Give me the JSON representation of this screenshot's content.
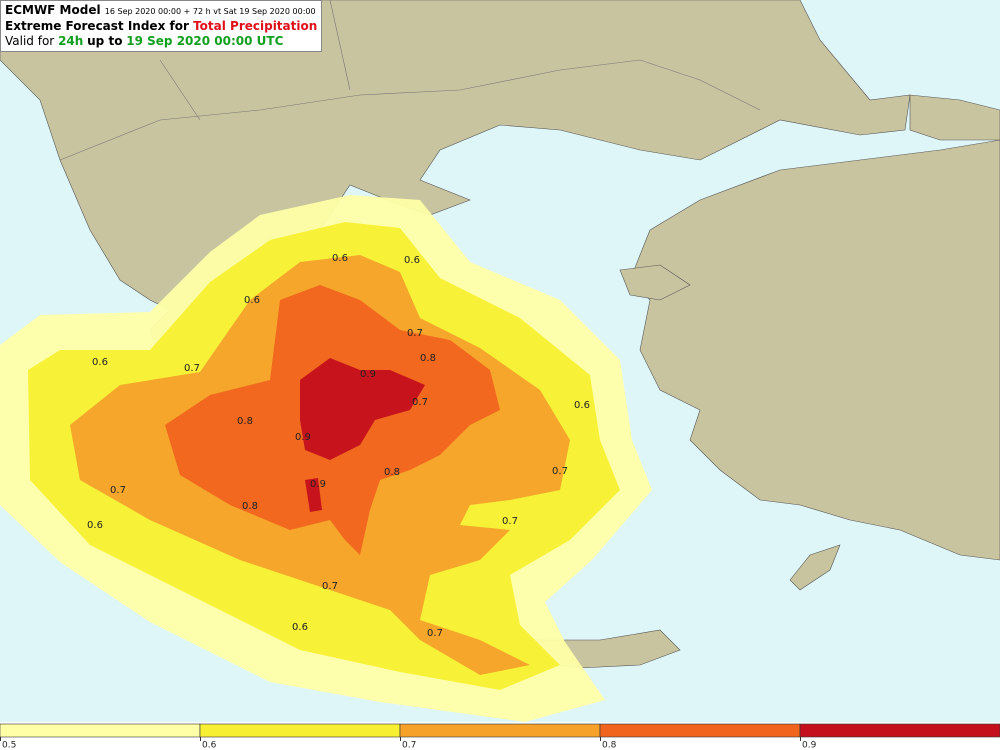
{
  "header": {
    "line1": [
      "ECMWF Model",
      "16 Sep 2020 00:00 + 72 h vt Sat 19 Sep 2020 00:00"
    ],
    "line2": [
      "Extreme Forecast Index for",
      "Total Precipitation"
    ],
    "line3": [
      "Valid for",
      "24h",
      "up to",
      "19 Sep 2020 00:00 UTC"
    ]
  },
  "contour_labels": [
    "0.6",
    "0.6",
    "0.6",
    "0.6",
    "0.6",
    "0.6",
    "0.6",
    "0.7",
    "0.7",
    "0.7",
    "0.7",
    "0.7",
    "0.7",
    "0.7",
    "0.7",
    "0.8",
    "0.8",
    "0.8",
    "0.8",
    "0.9",
    "0.9",
    "0.9"
  ],
  "colorbar": {
    "levels": [
      0.5,
      0.6,
      0.7,
      0.8,
      0.9
    ],
    "colors": [
      "#ffffa8",
      "#f7f032",
      "#f6a12a",
      "#f0641e",
      "#c4101c"
    ]
  }
}
